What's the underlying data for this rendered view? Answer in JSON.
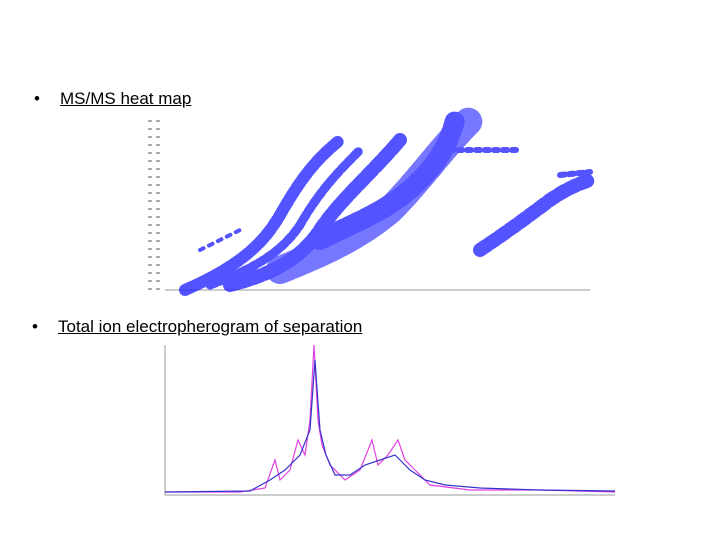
{
  "items": [
    {
      "label": "MS/MS heat map"
    },
    {
      "label": "Total ion electropherogram of separation"
    }
  ]
}
